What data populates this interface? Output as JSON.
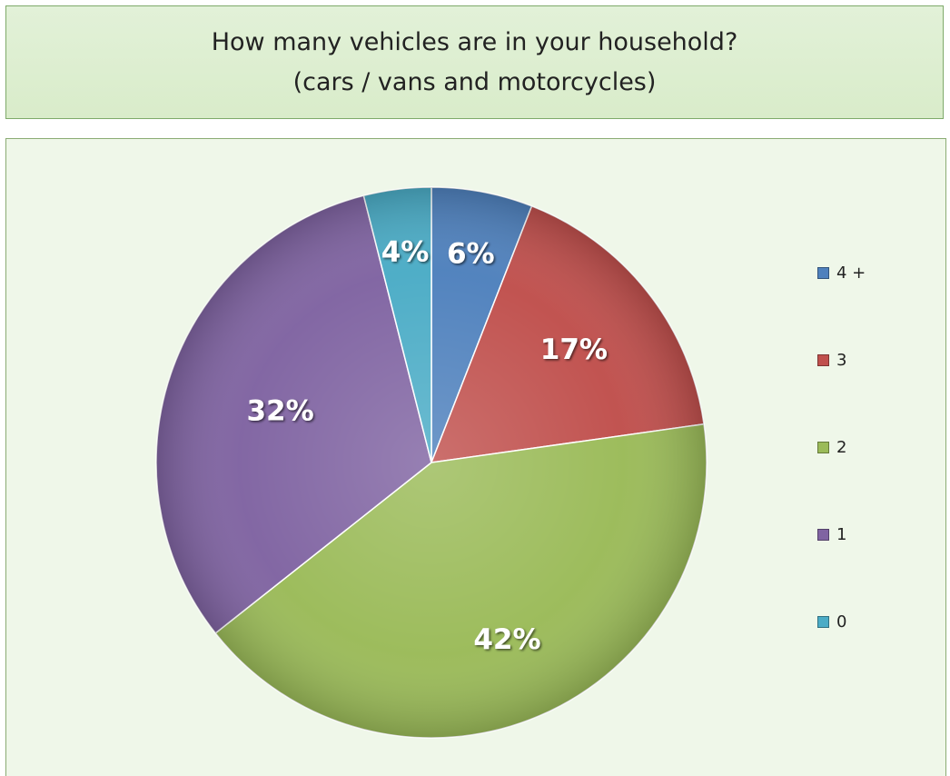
{
  "title": {
    "line1": "How many vehicles are in your household?",
    "line2": "(cars / vans and motorcycles)"
  },
  "chart_data": {
    "type": "pie",
    "title": "How many vehicles are in your household? (cars / vans and motorcycles)",
    "categories": [
      "4 +",
      "3",
      "2",
      "1",
      "0"
    ],
    "values": [
      6,
      17,
      42,
      32,
      4
    ],
    "labels": [
      "6%",
      "17%",
      "42%",
      "32%",
      "4%"
    ],
    "colors": [
      "#4f81bd",
      "#c0504d",
      "#9bbb59",
      "#8064a2",
      "#4bacc6"
    ],
    "legend_position": "right",
    "start_angle": "12 o'clock, clockwise"
  }
}
